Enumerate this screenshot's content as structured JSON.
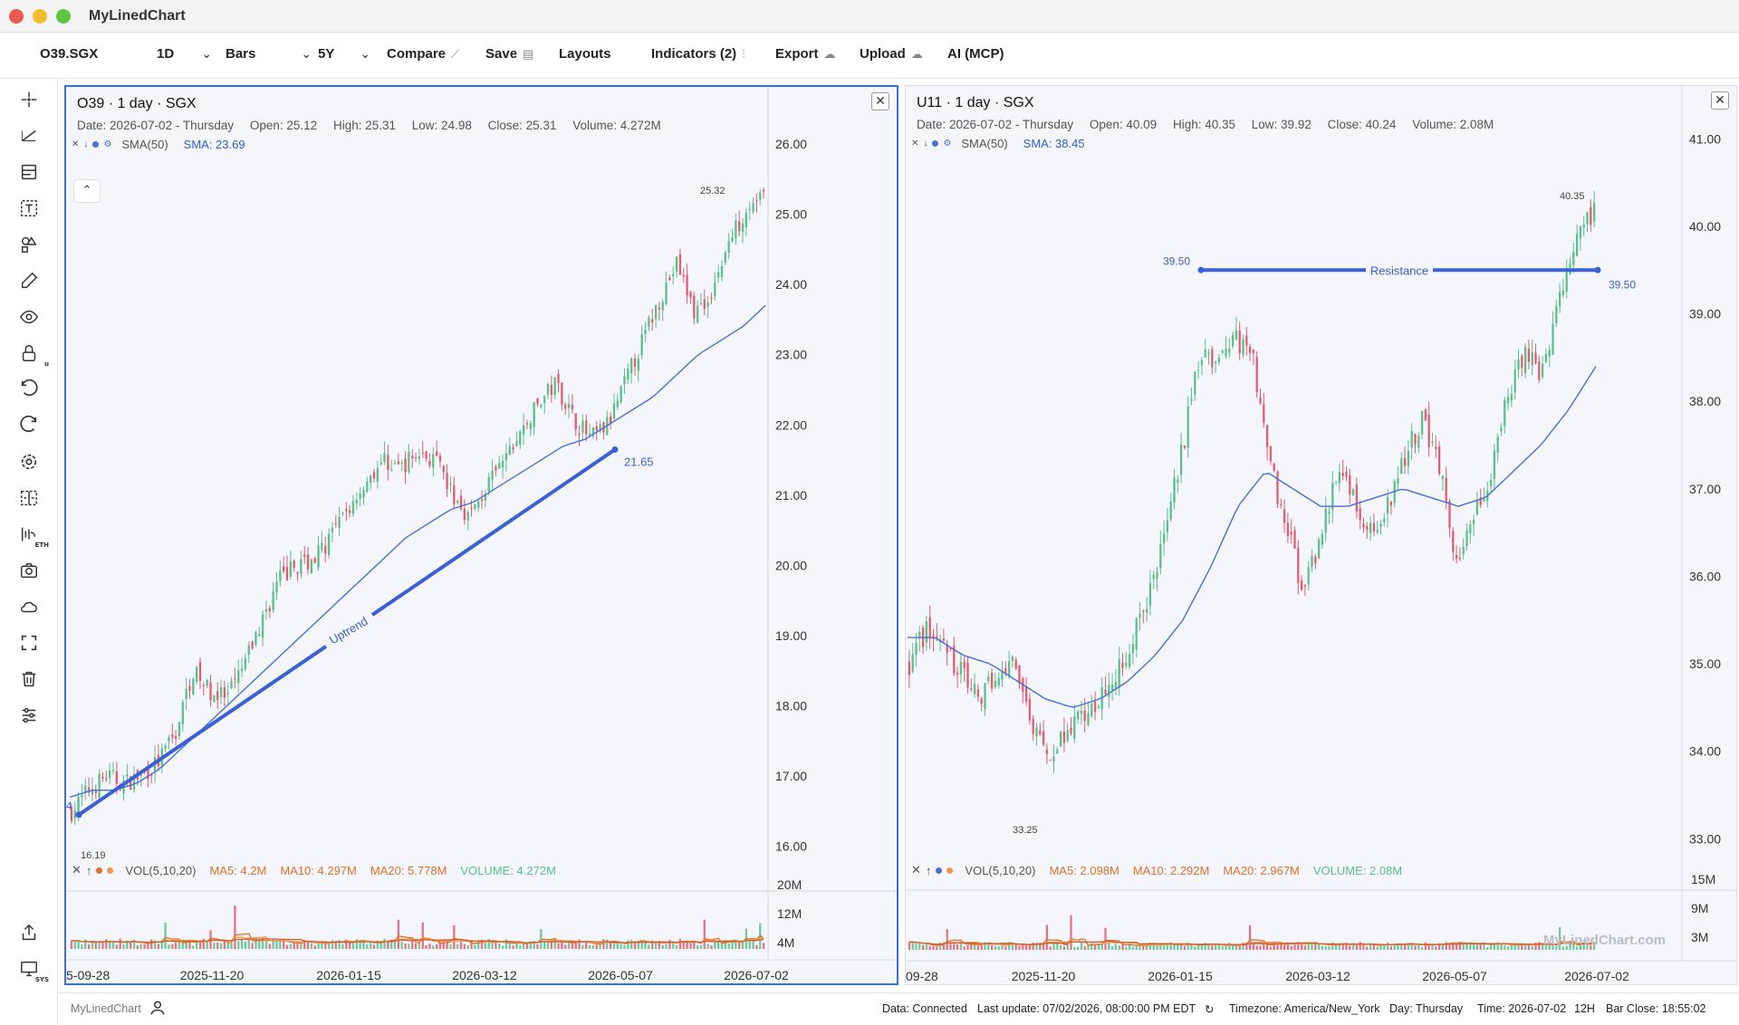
{
  "window": {
    "title": "MyLinedChart"
  },
  "toolbar": {
    "symbol": "O39.SGX",
    "interval": "1D",
    "chart_type": "Bars",
    "range": "5Y",
    "compare": "Compare",
    "save": "Save",
    "layouts": "Layouts",
    "indicators": "Indicators (2)",
    "export": "Export",
    "upload": "Upload",
    "ai": "AI (MCP)"
  },
  "left_tools": [
    "crosshair-icon",
    "trend-line-icon",
    "fib-icon",
    "text-icon",
    "shapes-icon",
    "brush-icon",
    "eye-icon",
    "lock-icon",
    "undo-icon",
    "redo-icon",
    "settings-icon",
    "compare-icon",
    "session-icon",
    "camera-icon",
    "cloud-icon",
    "fullscreen-icon",
    "trash-icon",
    "sliders-icon",
    "share-icon",
    "monitor-icon"
  ],
  "left_tool_subs": {
    "lock": "u",
    "session": "ETH",
    "monitor": "SYS"
  },
  "panels": [
    {
      "title": "O39 · 1 day · SGX",
      "info": {
        "date": "Date: 2026-07-02 - Thursday",
        "open": "Open: 25.12",
        "high": "High: 25.31",
        "low": "Low: 24.98",
        "close": "Close: 25.31",
        "volume": "Volume: 4.272M"
      },
      "indicator": {
        "name": "SMA(50)",
        "value": "SMA: 23.69"
      },
      "volume": {
        "name": "VOL(5,10,20)",
        "ma5": "MA5: 4.2M",
        "ma10": "MA10: 4.297M",
        "ma20": "MA20: 5.778M",
        "vol": "VOLUME: 4.272M"
      },
      "annotations": {
        "high_label": "25.32",
        "low_label": "16.19",
        "trend_end_label": "21.65",
        "trend_text": "Uptrend",
        "edge_label": "4"
      }
    },
    {
      "title": "U11 · 1 day · SGX",
      "info": {
        "date": "Date: 2026-07-02 - Thursday",
        "open": "Open: 40.09",
        "high": "High: 40.35",
        "low": "Low: 39.92",
        "close": "Close: 40.24",
        "volume": "Volume: 2.08M"
      },
      "indicator": {
        "name": "SMA(50)",
        "value": "SMA: 38.45"
      },
      "volume": {
        "name": "VOL(5,10,20)",
        "ma5": "MA5: 2.098M",
        "ma10": "MA10: 2.292M",
        "ma20": "MA20: 2.967M",
        "vol": "VOLUME: 2.08M"
      },
      "annotations": {
        "high_label": "40.35",
        "low_label": "33.25",
        "res_left_label": "39.50",
        "res_right_label": "39.50",
        "res_text": "Resistance"
      }
    }
  ],
  "chart_data": [
    {
      "type": "candlestick",
      "symbol": "O39",
      "y_ticks": [
        "26.00",
        "25.00",
        "24.00",
        "23.00",
        "22.00",
        "21.00",
        "20.00",
        "19.00",
        "18.00",
        "17.00",
        "16.00"
      ],
      "ylim": [
        15.7,
        26.4
      ],
      "x_ticks": [
        "5-09-28",
        "2025-11-20",
        "2026-01-15",
        "2026-03-12",
        "2026-05-07",
        "2026-07-02"
      ],
      "vol_ticks": [
        "20M",
        "12M",
        "4M"
      ],
      "close_path": [
        16.5,
        16.8,
        17.0,
        16.9,
        17.0,
        17.2,
        17.6,
        18.5,
        18.2,
        18.1,
        18.6,
        19.2,
        19.8,
        20.0,
        20.1,
        20.4,
        20.8,
        21.2,
        21.5,
        21.4,
        21.6,
        21.5,
        21.0,
        20.7,
        21.1,
        21.5,
        21.9,
        22.3,
        22.6,
        22.1,
        21.8,
        22.0,
        22.6,
        23.2,
        23.8,
        24.3,
        23.6,
        23.9,
        24.6,
        25.1,
        25.3
      ],
      "sma_path": [
        16.7,
        16.8,
        16.8,
        16.9,
        17.1,
        17.4,
        17.7,
        18.0,
        18.3,
        18.6,
        18.9,
        19.2,
        19.5,
        19.8,
        20.1,
        20.4,
        20.6,
        20.8,
        20.9,
        21.1,
        21.3,
        21.5,
        21.7,
        21.8,
        22.0,
        22.2,
        22.4,
        22.7,
        23.0,
        23.2,
        23.4,
        23.7
      ],
      "annotations": {
        "high": 25.32,
        "low": 16.19,
        "trend_start": 16.45,
        "trend_end": 21.65
      }
    },
    {
      "type": "candlestick",
      "symbol": "U11",
      "y_ticks": [
        "41.00",
        "40.00",
        "39.00",
        "38.00",
        "37.00",
        "36.00",
        "35.00",
        "34.00",
        "33.00"
      ],
      "ylim": [
        32.6,
        41.5
      ],
      "x_ticks": [
        "09-28",
        "2025-11-20",
        "2026-01-15",
        "2026-03-12",
        "2026-05-07",
        "2026-07-02"
      ],
      "vol_ticks": [
        "15M",
        "9M",
        "3M"
      ],
      "close_path": [
        35.0,
        35.4,
        35.2,
        34.9,
        34.6,
        34.8,
        35.0,
        34.4,
        33.9,
        34.2,
        34.4,
        34.6,
        34.8,
        35.3,
        35.8,
        36.6,
        37.5,
        38.6,
        38.4,
        38.7,
        38.6,
        37.3,
        36.6,
        35.8,
        36.4,
        37.2,
        36.9,
        36.5,
        36.8,
        37.4,
        37.8,
        37.2,
        36.1,
        36.7,
        37.2,
        38.1,
        38.6,
        38.3,
        39.2,
        39.8,
        40.2
      ],
      "sma_path": [
        35.3,
        35.3,
        35.1,
        35.0,
        34.8,
        34.6,
        34.5,
        34.6,
        34.8,
        35.1,
        35.5,
        36.1,
        36.8,
        37.2,
        37.0,
        36.8,
        36.8,
        36.9,
        37.0,
        36.9,
        36.8,
        36.9,
        37.2,
        37.5,
        37.9,
        38.4
      ],
      "annotations": {
        "high": 40.35,
        "low": 33.25,
        "resistance": 39.5
      }
    }
  ],
  "status": {
    "brand": "MyLinedChart",
    "data": "Data: Connected",
    "last_update": "Last update: 07/02/2026, 08:00:00 PM EDT",
    "refresh": "↻",
    "timezone": "Timezone: America/New_York",
    "day": "Day: Thursday",
    "time": "Time: 2026-07-02",
    "hour": "12H",
    "bar_close": "Bar Close: 18:55:02"
  },
  "watermark": "MyLinedChart.com",
  "colors": {
    "up": "#5bbf8a",
    "down": "#e25c6f",
    "sma": "#4a6fd6",
    "drawing": "#3b5fd4",
    "ma5": "#e0702a",
    "ma10": "#ee9a4a",
    "ma20": "#d45a2a"
  }
}
